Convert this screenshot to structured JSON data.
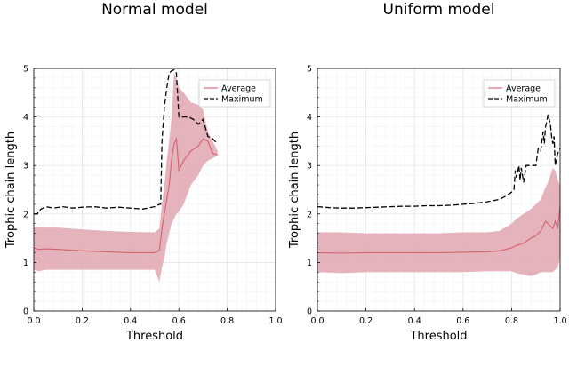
{
  "chart_data": [
    {
      "type": "line",
      "title": "Normal model",
      "xlabel": "Threshold",
      "ylabel": "Trophic chain length",
      "xlim": [
        0,
        1
      ],
      "ylim": [
        0,
        5
      ],
      "xticks": [
        "0.0",
        "0.2",
        "0.4",
        "0.6",
        "0.8",
        "1.0"
      ],
      "yticks": [
        "0",
        "1",
        "2",
        "3",
        "4",
        "5"
      ],
      "grid": true,
      "legend_position": "top-right",
      "series": [
        {
          "name": "Average",
          "style": "solid band",
          "color": "#d4616e",
          "band_color": "#e0a6b0",
          "x": [
            0.0,
            0.02,
            0.05,
            0.1,
            0.2,
            0.3,
            0.4,
            0.5,
            0.52,
            0.53,
            0.54,
            0.55,
            0.56,
            0.57,
            0.58,
            0.59,
            0.6,
            0.62,
            0.65,
            0.68,
            0.7,
            0.72,
            0.74,
            0.76
          ],
          "y": [
            1.3,
            1.27,
            1.28,
            1.27,
            1.24,
            1.22,
            1.2,
            1.2,
            1.25,
            1.7,
            2.0,
            2.3,
            2.6,
            3.1,
            3.45,
            3.55,
            2.9,
            3.1,
            3.3,
            3.4,
            3.55,
            3.5,
            3.25,
            3.22
          ],
          "lower": [
            0.85,
            0.82,
            0.85,
            0.85,
            0.85,
            0.85,
            0.85,
            0.85,
            0.6,
            0.9,
            1.1,
            1.4,
            1.6,
            1.8,
            1.9,
            2.0,
            2.05,
            2.2,
            2.6,
            2.8,
            3.0,
            3.1,
            3.15,
            3.2
          ],
          "upper": [
            1.75,
            1.72,
            1.72,
            1.72,
            1.68,
            1.65,
            1.63,
            1.62,
            1.7,
            2.2,
            2.6,
            3.1,
            3.5,
            4.0,
            4.9,
            4.8,
            4.6,
            4.5,
            4.3,
            4.25,
            4.15,
            3.7,
            3.5,
            3.3
          ]
        },
        {
          "name": "Maximum",
          "style": "dashed",
          "color": "#000000",
          "x": [
            0.0,
            0.015,
            0.02,
            0.03,
            0.05,
            0.08,
            0.12,
            0.16,
            0.2,
            0.25,
            0.3,
            0.35,
            0.4,
            0.45,
            0.5,
            0.52,
            0.525,
            0.53,
            0.54,
            0.55,
            0.56,
            0.57,
            0.58,
            0.59,
            0.6,
            0.62,
            0.64,
            0.66,
            0.68,
            0.7,
            0.72,
            0.74,
            0.76
          ],
          "y": [
            2.0,
            2.0,
            2.05,
            2.1,
            2.15,
            2.12,
            2.15,
            2.12,
            2.14,
            2.15,
            2.12,
            2.14,
            2.12,
            2.1,
            2.15,
            2.2,
            2.2,
            3.5,
            4.2,
            4.6,
            4.9,
            4.95,
            4.97,
            4.9,
            4.0,
            4.0,
            4.0,
            3.95,
            3.85,
            3.95,
            3.6,
            3.55,
            3.45
          ]
        }
      ]
    },
    {
      "type": "line",
      "title": "Uniform model",
      "xlabel": "Threshold",
      "ylabel": "Trophic chain length",
      "xlim": [
        0,
        1
      ],
      "ylim": [
        0,
        5
      ],
      "xticks": [
        "0.0",
        "0.2",
        "0.4",
        "0.6",
        "0.8",
        "1.0"
      ],
      "yticks": [
        "0",
        "1",
        "2",
        "3",
        "4",
        "5"
      ],
      "grid": true,
      "legend_position": "top-right",
      "series": [
        {
          "name": "Average",
          "style": "solid band",
          "color": "#d4616e",
          "band_color": "#e0a6b0",
          "x": [
            0.0,
            0.1,
            0.2,
            0.3,
            0.4,
            0.5,
            0.6,
            0.7,
            0.75,
            0.8,
            0.82,
            0.85,
            0.88,
            0.9,
            0.92,
            0.94,
            0.95,
            0.96,
            0.97,
            0.98,
            0.99,
            1.0
          ],
          "y": [
            1.2,
            1.19,
            1.2,
            1.2,
            1.2,
            1.2,
            1.21,
            1.22,
            1.24,
            1.3,
            1.35,
            1.4,
            1.5,
            1.55,
            1.65,
            1.85,
            1.8,
            1.75,
            1.7,
            1.85,
            1.7,
            2.15
          ],
          "lower": [
            0.8,
            0.78,
            0.8,
            0.8,
            0.8,
            0.8,
            0.8,
            0.82,
            0.82,
            0.82,
            0.78,
            0.75,
            0.72,
            0.75,
            0.8,
            0.8,
            0.8,
            0.8,
            0.8,
            0.85,
            0.9,
            1.1
          ],
          "upper": [
            1.62,
            1.62,
            1.6,
            1.6,
            1.6,
            1.6,
            1.62,
            1.62,
            1.65,
            1.8,
            1.9,
            2.0,
            2.1,
            2.2,
            2.3,
            2.55,
            2.65,
            2.8,
            2.95,
            2.9,
            2.7,
            2.6
          ]
        },
        {
          "name": "Maximum",
          "style": "dashed",
          "color": "#000000",
          "x": [
            0.0,
            0.05,
            0.1,
            0.15,
            0.2,
            0.25,
            0.3,
            0.35,
            0.4,
            0.45,
            0.5,
            0.55,
            0.6,
            0.65,
            0.7,
            0.75,
            0.78,
            0.8,
            0.81,
            0.815,
            0.82,
            0.83,
            0.835,
            0.84,
            0.85,
            0.86,
            0.87,
            0.88,
            0.9,
            0.91,
            0.92,
            0.93,
            0.935,
            0.94,
            0.945,
            0.95,
            0.96,
            0.965,
            0.97,
            0.975,
            0.98,
            0.99,
            1.0
          ],
          "y": [
            2.15,
            2.13,
            2.12,
            2.12,
            2.13,
            2.14,
            2.15,
            2.16,
            2.16,
            2.17,
            2.17,
            2.18,
            2.2,
            2.22,
            2.25,
            2.3,
            2.38,
            2.45,
            2.5,
            2.9,
            2.75,
            3.0,
            2.7,
            2.95,
            2.65,
            3.0,
            3.0,
            3.0,
            3.0,
            3.35,
            3.3,
            3.7,
            3.45,
            3.8,
            3.9,
            4.05,
            3.85,
            3.6,
            3.45,
            3.6,
            3.0,
            3.25,
            3.35
          ]
        }
      ]
    }
  ]
}
